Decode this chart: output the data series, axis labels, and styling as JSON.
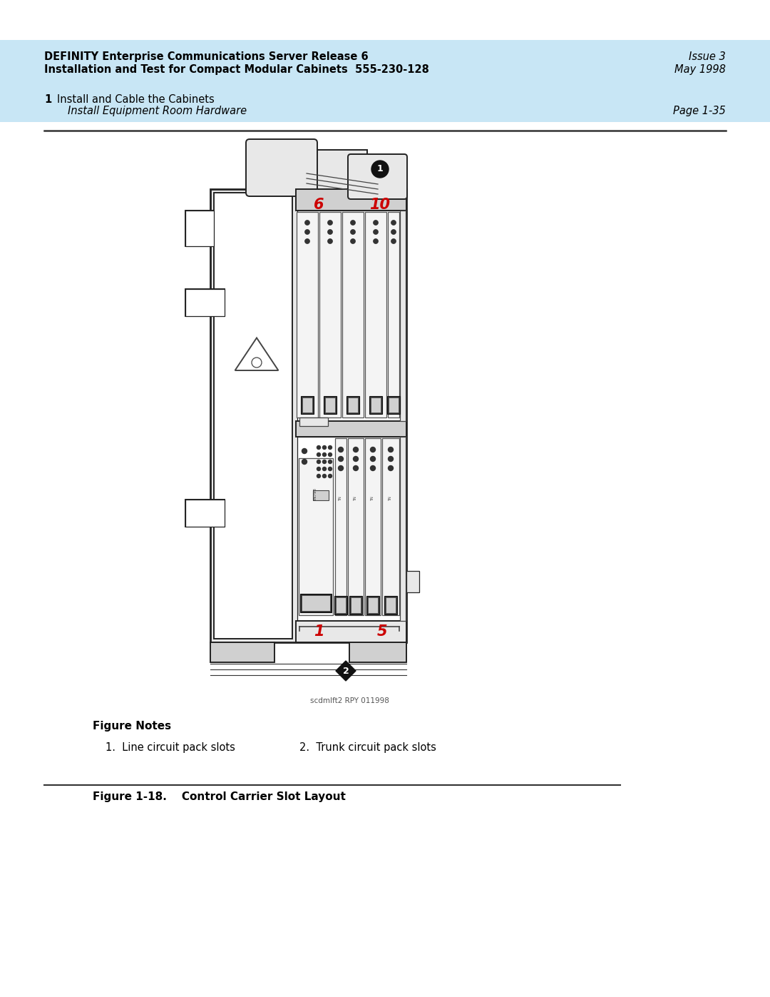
{
  "bg_color": "#ffffff",
  "header_bg": "#c8e6f5",
  "header_left_line1": "DEFINITY Enterprise Communications Server Release 6",
  "header_left_line2": "Installation and Test for Compact Modular Cabinets  555-230-128",
  "header_right_line1": "Issue 3",
  "header_right_line2": "May 1998",
  "subheader_num": "1",
  "subheader_left": "Install and Cable the Cabinets",
  "subheader_italic": "Install Equipment Room Hardware",
  "subheader_right": "Page 1-35",
  "figure_notes_title": "Figure Notes",
  "note1": "1.  Line circuit pack slots",
  "note2": "2.  Trunk circuit pack slots",
  "figure_caption": "Figure 1-18.    Control Carrier Slot Layout",
  "image_credit": "scdmlft2 RPY 011998",
  "red_color": "#cc0000",
  "black_color": "#000000",
  "label1_text": "1",
  "label2_text": "2",
  "label6_text": "6",
  "label10_text": "10",
  "label1b_text": "1",
  "label5_text": "5"
}
